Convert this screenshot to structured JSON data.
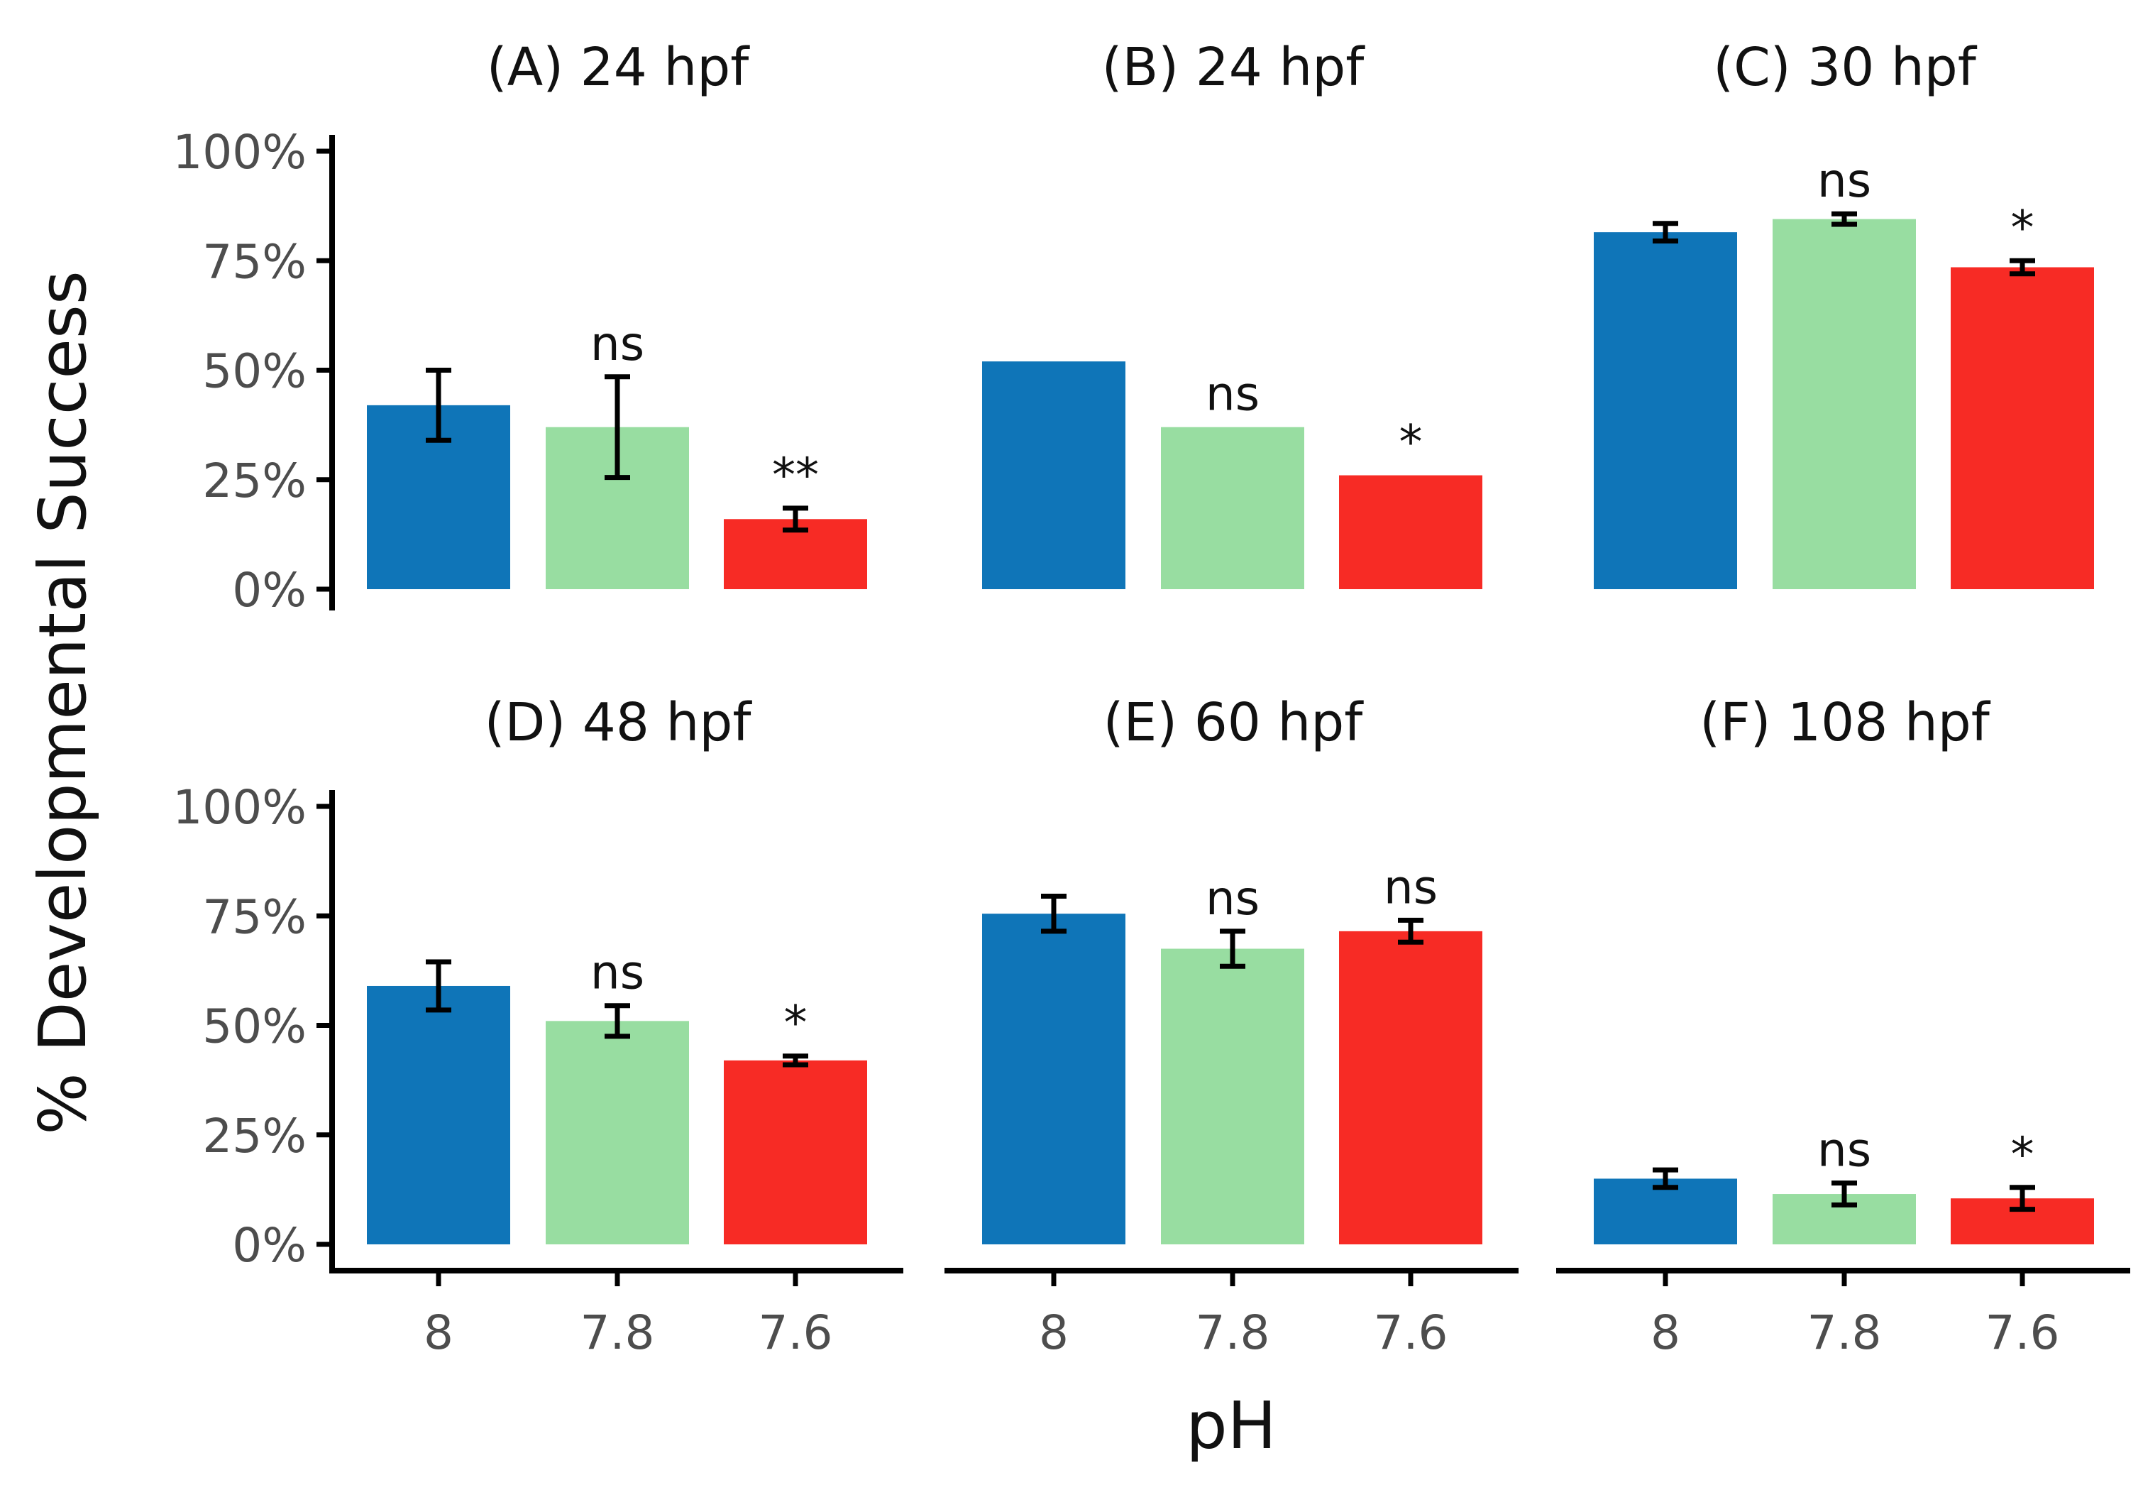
{
  "chart_data": {
    "type": "bar",
    "xlabel": "pH",
    "ylabel": "% Developmental Success",
    "ylim": [
      0,
      100
    ],
    "yticks": [
      "0%",
      "25%",
      "50%",
      "75%",
      "100%"
    ],
    "categories": [
      "8",
      "7.8",
      "7.6"
    ],
    "colors": [
      "#0f75b8",
      "#98dda1",
      "#f72b25"
    ],
    "panels": [
      {
        "title": "(A) 24 hpf",
        "values": [
          42,
          37,
          16
        ],
        "errors": [
          8,
          11.5,
          2.5
        ],
        "labels": [
          "",
          "ns",
          "**"
        ]
      },
      {
        "title": "(B) 24 hpf",
        "values": [
          52,
          37,
          26
        ],
        "errors": [
          0,
          0,
          0
        ],
        "labels": [
          "",
          "ns",
          "*"
        ]
      },
      {
        "title": "(C) 30 hpf",
        "values": [
          81.5,
          84.5,
          73.5
        ],
        "errors": [
          2,
          1.2,
          1.5
        ],
        "labels": [
          "",
          "ns",
          "*"
        ]
      },
      {
        "title": "(D) 48 hpf",
        "values": [
          59,
          51,
          42
        ],
        "errors": [
          5.5,
          3.5,
          1
        ],
        "labels": [
          "",
          "ns",
          "*"
        ]
      },
      {
        "title": "(E) 60 hpf",
        "values": [
          75.5,
          67.5,
          71.5
        ],
        "errors": [
          4,
          4,
          2.5
        ],
        "labels": [
          "",
          "ns",
          "ns"
        ]
      },
      {
        "title": "(F) 108 hpf",
        "values": [
          15,
          11.5,
          10.5
        ],
        "errors": [
          2,
          2.5,
          2.5
        ],
        "labels": [
          "",
          "ns",
          "*"
        ]
      }
    ]
  }
}
